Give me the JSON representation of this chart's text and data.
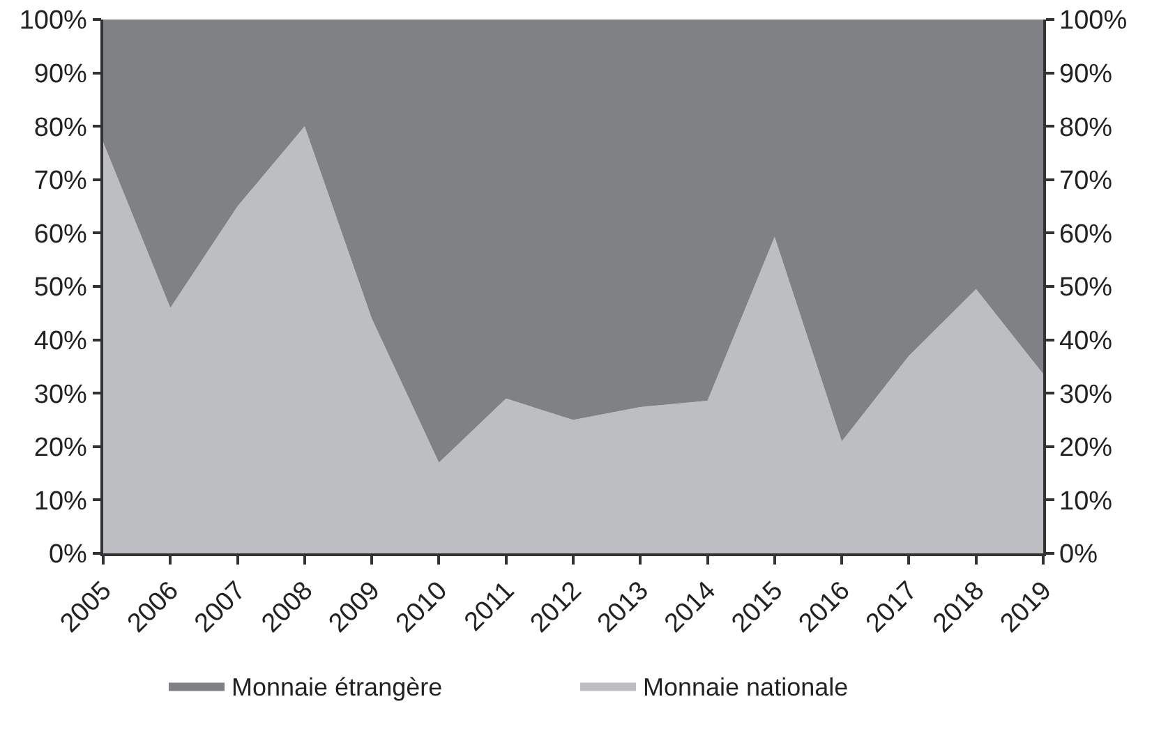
{
  "chart_data": {
    "type": "area",
    "stacked": true,
    "categories": [
      "2005",
      "2006",
      "2007",
      "2008",
      "2009",
      "2010",
      "2011",
      "2012",
      "2013",
      "2014",
      "2015",
      "2016",
      "2017",
      "2018",
      "2019"
    ],
    "series": [
      {
        "name": "Monnaie nationale",
        "color": "#bdbec2",
        "values": [
          77,
          46,
          65,
          80,
          44,
          17,
          29,
          25,
          27.4,
          28.6,
          59.3,
          21,
          37,
          49.5,
          33.6
        ]
      },
      {
        "name": "Monnaie étrangère",
        "color": "#808185",
        "values": [
          23,
          54,
          35,
          20,
          56,
          83,
          71,
          75,
          72.6,
          71.4,
          40.7,
          79,
          63,
          50.5,
          66.4
        ]
      }
    ],
    "ylim": [
      0,
      100
    ],
    "yticks": [
      {
        "value": 0,
        "label": "0%"
      },
      {
        "value": 10,
        "label": "10%"
      },
      {
        "value": 20,
        "label": "20%"
      },
      {
        "value": 30,
        "label": "30%"
      },
      {
        "value": 40,
        "label": "40%"
      },
      {
        "value": 50,
        "label": "50%"
      },
      {
        "value": 60,
        "label": "60%"
      },
      {
        "value": 70,
        "label": "70%"
      },
      {
        "value": 80,
        "label": "80%"
      },
      {
        "value": 90,
        "label": "90%"
      },
      {
        "value": 100,
        "label": "100%"
      }
    ],
    "y2lim": [
      0,
      100
    ],
    "y2ticks": [
      {
        "value": 0,
        "label": "0%"
      },
      {
        "value": 10,
        "label": "10%"
      },
      {
        "value": 20,
        "label": "20%"
      },
      {
        "value": 30,
        "label": "30%"
      },
      {
        "value": 40,
        "label": "40%"
      },
      {
        "value": 50,
        "label": "50%"
      },
      {
        "value": 60,
        "label": "60%"
      },
      {
        "value": 70,
        "label": "70%"
      },
      {
        "value": 80,
        "label": "80%"
      },
      {
        "value": 90,
        "label": "90%"
      },
      {
        "value": 100,
        "label": "100%"
      }
    ],
    "legend": "bottom",
    "marker": "none"
  }
}
